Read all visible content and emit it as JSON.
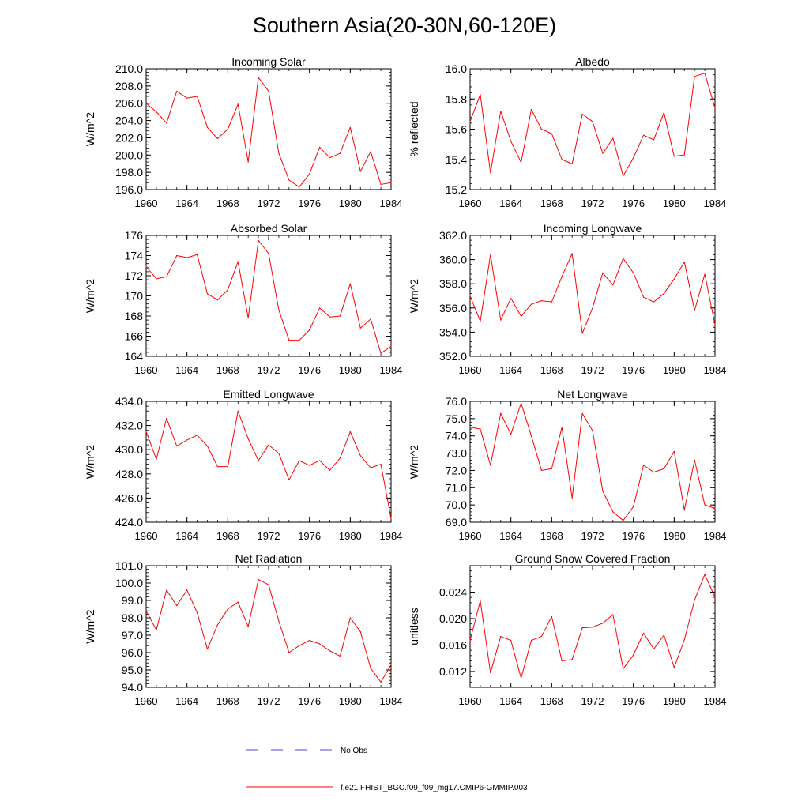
{
  "figure_title": "Southern Asia(20-30N,60-120E)",
  "legend": [
    {
      "label": "No Obs",
      "color": "#4a4ad0",
      "style": "dashed"
    },
    {
      "label": "f.e21.FHIST_BGC.f09_f09_mg17.CMIP6-GMMIP.003",
      "color": "#ff0000",
      "style": "solid"
    }
  ],
  "chart_data": [
    {
      "type": "line",
      "title": "Incoming Solar",
      "xlabel": "",
      "ylabel": "W/m^2",
      "xlim": [
        1960,
        1984
      ],
      "ylim": [
        196,
        210
      ],
      "xticks": [
        1960,
        1964,
        1968,
        1972,
        1976,
        1980,
        1984
      ],
      "yticks": [
        196,
        198,
        200,
        202,
        204,
        206,
        208,
        210
      ],
      "ytick_labels": [
        "196.0",
        "198.0",
        "200.0",
        "202.0",
        "204.0",
        "206.0",
        "208.0",
        "210.0"
      ],
      "series": [
        {
          "name": "f.e21.FHIST_BGC.f09_f09_mg17.CMIP6-GMMIP.003",
          "color": "#ff0000",
          "x": [
            1960,
            1961,
            1962,
            1963,
            1964,
            1965,
            1966,
            1967,
            1968,
            1969,
            1970,
            1971,
            1972,
            1973,
            1974,
            1975,
            1976,
            1977,
            1978,
            1979,
            1980,
            1981,
            1982,
            1983,
            1984
          ],
          "values": [
            206.0,
            205.0,
            203.7,
            207.4,
            206.6,
            206.8,
            203.2,
            201.9,
            203.0,
            205.9,
            199.2,
            209.0,
            207.4,
            200.2,
            197.1,
            196.3,
            197.8,
            200.9,
            199.7,
            200.2,
            203.2,
            198.1,
            200.4,
            196.6,
            196.8
          ]
        }
      ]
    },
    {
      "type": "line",
      "title": "Albedo",
      "xlabel": "",
      "ylabel": "% reflected",
      "xlim": [
        1960,
        1984
      ],
      "ylim": [
        15.2,
        16.0
      ],
      "xticks": [
        1960,
        1964,
        1968,
        1972,
        1976,
        1980,
        1984
      ],
      "yticks": [
        15.2,
        15.4,
        15.6,
        15.8,
        16.0
      ],
      "ytick_labels": [
        "15.2",
        "15.4",
        "15.6",
        "15.8",
        "16.0"
      ],
      "series": [
        {
          "name": "f.e21.FHIST_BGC.f09_f09_mg17.CMIP6-GMMIP.003",
          "color": "#ff0000",
          "x": [
            1960,
            1961,
            1962,
            1963,
            1964,
            1965,
            1966,
            1967,
            1968,
            1969,
            1970,
            1971,
            1972,
            1973,
            1974,
            1975,
            1976,
            1977,
            1978,
            1979,
            1980,
            1981,
            1982,
            1983,
            1984
          ],
          "values": [
            15.65,
            15.83,
            15.31,
            15.72,
            15.52,
            15.38,
            15.73,
            15.6,
            15.57,
            15.4,
            15.37,
            15.7,
            15.65,
            15.44,
            15.54,
            15.29,
            15.41,
            15.56,
            15.53,
            15.71,
            15.42,
            15.43,
            15.95,
            15.97,
            15.74
          ]
        }
      ]
    },
    {
      "type": "line",
      "title": "Absorbed Solar",
      "xlabel": "",
      "ylabel": "W/m^2",
      "xlim": [
        1960,
        1984
      ],
      "ylim": [
        164,
        176
      ],
      "xticks": [
        1960,
        1964,
        1968,
        1972,
        1976,
        1980,
        1984
      ],
      "yticks": [
        164,
        166,
        168,
        170,
        172,
        174,
        176
      ],
      "ytick_labels": [
        "164",
        "166",
        "168",
        "170",
        "172",
        "174",
        "176"
      ],
      "series": [
        {
          "name": "f.e21.FHIST_BGC.f09_f09_mg17.CMIP6-GMMIP.003",
          "color": "#ff0000",
          "x": [
            1960,
            1961,
            1962,
            1963,
            1964,
            1965,
            1966,
            1967,
            1968,
            1969,
            1970,
            1971,
            1972,
            1973,
            1974,
            1975,
            1976,
            1977,
            1978,
            1979,
            1980,
            1981,
            1982,
            1983,
            1984
          ],
          "values": [
            172.9,
            171.7,
            171.9,
            174.0,
            173.8,
            174.1,
            170.2,
            169.6,
            170.6,
            173.4,
            167.8,
            175.5,
            174.2,
            168.6,
            165.6,
            165.6,
            166.6,
            168.8,
            167.9,
            168.0,
            171.2,
            166.8,
            167.7,
            164.3,
            165.0
          ]
        }
      ]
    },
    {
      "type": "line",
      "title": "Incoming Longwave",
      "xlabel": "",
      "ylabel": "W/m^2",
      "xlim": [
        1960,
        1984
      ],
      "ylim": [
        352,
        362
      ],
      "xticks": [
        1960,
        1964,
        1968,
        1972,
        1976,
        1980,
        1984
      ],
      "yticks": [
        352,
        354,
        356,
        358,
        360,
        362
      ],
      "ytick_labels": [
        "352.0",
        "354.0",
        "356.0",
        "358.0",
        "360.0",
        "362.0"
      ],
      "series": [
        {
          "name": "f.e21.FHIST_BGC.f09_f09_mg17.CMIP6-GMMIP.003",
          "color": "#ff0000",
          "x": [
            1960,
            1961,
            1962,
            1963,
            1964,
            1965,
            1966,
            1967,
            1968,
            1969,
            1970,
            1971,
            1972,
            1973,
            1974,
            1975,
            1976,
            1977,
            1978,
            1979,
            1980,
            1981,
            1982,
            1983,
            1984
          ],
          "values": [
            357.0,
            354.9,
            360.4,
            355.0,
            356.8,
            355.3,
            356.3,
            356.6,
            356.5,
            358.6,
            360.5,
            353.9,
            356.0,
            358.9,
            357.9,
            360.1,
            358.9,
            356.9,
            356.5,
            357.2,
            358.4,
            359.8,
            355.8,
            358.8,
            354.6
          ]
        }
      ]
    },
    {
      "type": "line",
      "title": "Emitted Longwave",
      "xlabel": "",
      "ylabel": "W/m^2",
      "xlim": [
        1960,
        1984
      ],
      "ylim": [
        424,
        434
      ],
      "xticks": [
        1960,
        1964,
        1968,
        1972,
        1976,
        1980,
        1984
      ],
      "yticks": [
        424,
        426,
        428,
        430,
        432,
        434
      ],
      "ytick_labels": [
        "424.0",
        "426.0",
        "428.0",
        "430.0",
        "432.0",
        "434.0"
      ],
      "series": [
        {
          "name": "f.e21.FHIST_BGC.f09_f09_mg17.CMIP6-GMMIP.003",
          "color": "#ff0000",
          "x": [
            1960,
            1961,
            1962,
            1963,
            1964,
            1965,
            1966,
            1967,
            1968,
            1969,
            1970,
            1971,
            1972,
            1973,
            1974,
            1975,
            1976,
            1977,
            1978,
            1979,
            1980,
            1981,
            1982,
            1983,
            1984
          ],
          "values": [
            431.5,
            429.2,
            432.6,
            430.3,
            430.8,
            431.2,
            430.3,
            428.6,
            428.6,
            433.2,
            430.9,
            429.1,
            430.4,
            429.7,
            427.5,
            429.1,
            428.7,
            429.1,
            428.3,
            429.3,
            431.5,
            429.5,
            428.5,
            428.8,
            424.3
          ]
        }
      ]
    },
    {
      "type": "line",
      "title": "Net Longwave",
      "xlabel": "",
      "ylabel": "W/m^2",
      "xlim": [
        1960,
        1984
      ],
      "ylim": [
        69,
        76
      ],
      "xticks": [
        1960,
        1964,
        1968,
        1972,
        1976,
        1980,
        1984
      ],
      "yticks": [
        69,
        70,
        71,
        72,
        73,
        74,
        75,
        76
      ],
      "ytick_labels": [
        "69.0",
        "70.0",
        "71.0",
        "72.0",
        "73.0",
        "74.0",
        "75.0",
        "76.0"
      ],
      "series": [
        {
          "name": "f.e21.FHIST_BGC.f09_f09_mg17.CMIP6-GMMIP.003",
          "color": "#ff0000",
          "x": [
            1960,
            1961,
            1962,
            1963,
            1964,
            1965,
            1966,
            1967,
            1968,
            1969,
            1970,
            1971,
            1972,
            1973,
            1974,
            1975,
            1976,
            1977,
            1978,
            1979,
            1980,
            1981,
            1982,
            1983,
            1984
          ],
          "values": [
            74.5,
            74.4,
            72.3,
            75.3,
            74.1,
            75.9,
            74.0,
            72.0,
            72.1,
            74.5,
            70.4,
            75.3,
            74.3,
            70.8,
            69.6,
            69.1,
            69.9,
            72.3,
            71.9,
            72.1,
            73.1,
            69.7,
            72.6,
            70.0,
            69.8
          ]
        }
      ]
    },
    {
      "type": "line",
      "title": "Net Radiation",
      "xlabel": "",
      "ylabel": "W/m^2",
      "xlim": [
        1960,
        1984
      ],
      "ylim": [
        94,
        101
      ],
      "xticks": [
        1960,
        1964,
        1968,
        1972,
        1976,
        1980,
        1984
      ],
      "yticks": [
        94,
        95,
        96,
        97,
        98,
        99,
        100,
        101
      ],
      "ytick_labels": [
        "94.0",
        "95.0",
        "96.0",
        "97.0",
        "98.0",
        "99.0",
        "100.0",
        "101.0"
      ],
      "series": [
        {
          "name": "f.e21.FHIST_BGC.f09_f09_mg17.CMIP6-GMMIP.003",
          "color": "#ff0000",
          "x": [
            1960,
            1961,
            1962,
            1963,
            1964,
            1965,
            1966,
            1967,
            1968,
            1969,
            1970,
            1971,
            1972,
            1973,
            1974,
            1975,
            1976,
            1977,
            1978,
            1979,
            1980,
            1981,
            1982,
            1983,
            1984
          ],
          "values": [
            98.4,
            97.3,
            99.6,
            98.7,
            99.6,
            98.3,
            96.2,
            97.6,
            98.5,
            98.9,
            97.5,
            100.2,
            99.9,
            97.8,
            96.0,
            96.4,
            96.7,
            96.5,
            96.1,
            95.8,
            98.0,
            97.2,
            95.1,
            94.3,
            95.3
          ]
        }
      ]
    },
    {
      "type": "line",
      "title": "Ground Snow Covered Fraction",
      "xlabel": "",
      "ylabel": "unitless",
      "xlim": [
        1960,
        1984
      ],
      "ylim": [
        0.0096,
        0.028
      ],
      "xticks": [
        1960,
        1964,
        1968,
        1972,
        1976,
        1980,
        1984
      ],
      "yticks": [
        0.012,
        0.016,
        0.02,
        0.024
      ],
      "ytick_labels": [
        "0.012",
        "0.016",
        "0.020",
        "0.024"
      ],
      "series": [
        {
          "name": "f.e21.FHIST_BGC.f09_f09_mg17.CMIP6-GMMIP.003",
          "color": "#ff0000",
          "x": [
            1960,
            1961,
            1962,
            1963,
            1964,
            1965,
            1966,
            1967,
            1968,
            1969,
            1970,
            1971,
            1972,
            1973,
            1974,
            1975,
            1976,
            1977,
            1978,
            1979,
            1980,
            1981,
            1982,
            1983,
            1984
          ],
          "values": [
            0.0167,
            0.0227,
            0.0118,
            0.0173,
            0.0167,
            0.011,
            0.0167,
            0.0173,
            0.0203,
            0.0136,
            0.0138,
            0.0186,
            0.0187,
            0.0193,
            0.0206,
            0.0124,
            0.0145,
            0.0178,
            0.0154,
            0.0175,
            0.0126,
            0.0168,
            0.0228,
            0.0267,
            0.0232
          ]
        }
      ]
    }
  ]
}
